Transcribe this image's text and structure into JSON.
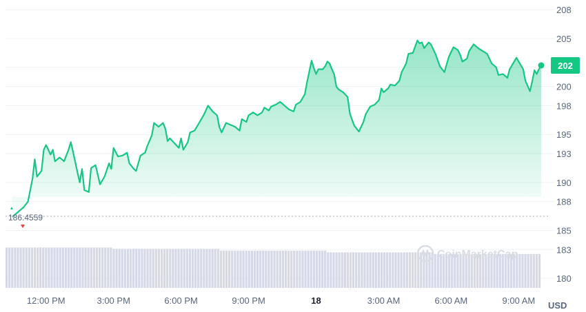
{
  "chart_data": {
    "type": "area",
    "currency": "USD",
    "open_price_label": "186.4559",
    "current_price_label": "202",
    "watermark": "CoinMarketCap",
    "y_ticks": [
      180,
      183,
      185,
      188,
      190,
      193,
      195,
      198,
      200,
      202,
      205,
      208
    ],
    "ylim": [
      179,
      208.3
    ],
    "xlim": [
      10.2,
      34.0
    ],
    "x_ticks": [
      {
        "label": "12:00 PM",
        "x": 12,
        "bold": false
      },
      {
        "label": "3:00 PM",
        "x": 15,
        "bold": false
      },
      {
        "label": "6:00 PM",
        "x": 18,
        "bold": false
      },
      {
        "label": "9:00 PM",
        "x": 21,
        "bold": false
      },
      {
        "label": "18",
        "x": 24,
        "bold": true
      },
      {
        "label": "3:00 AM",
        "x": 27,
        "bold": false
      },
      {
        "label": "6:00 AM",
        "x": 30,
        "bold": false
      },
      {
        "label": "9:00 AM",
        "x": 33,
        "bold": false
      }
    ],
    "colors": {
      "line": "#16c784",
      "down": "#ea3943",
      "volume": "#d5d8e6",
      "grid": "#eff2f5"
    },
    "series": [
      {
        "values": [
          [
            10.5,
            186.4
          ],
          [
            10.8,
            187.0
          ],
          [
            11.0,
            187.4
          ],
          [
            11.2,
            188.0
          ],
          [
            11.4,
            190.4
          ],
          [
            11.5,
            192.4
          ],
          [
            11.6,
            190.6
          ],
          [
            11.8,
            191.2
          ],
          [
            11.9,
            193.4
          ],
          [
            12.0,
            193.9
          ],
          [
            12.2,
            192.9
          ],
          [
            12.3,
            193.4
          ],
          [
            12.4,
            192.2
          ],
          [
            12.6,
            192.6
          ],
          [
            12.8,
            192.2
          ],
          [
            13.0,
            193.4
          ],
          [
            13.1,
            194.2
          ],
          [
            13.2,
            193.2
          ],
          [
            13.4,
            191.0
          ],
          [
            13.5,
            190.0
          ],
          [
            13.6,
            191.4
          ],
          [
            13.7,
            189.2
          ],
          [
            13.9,
            189.0
          ],
          [
            14.0,
            191.5
          ],
          [
            14.2,
            191.8
          ],
          [
            14.4,
            189.8
          ],
          [
            14.6,
            190.6
          ],
          [
            14.8,
            192.0
          ],
          [
            14.9,
            191.4
          ],
          [
            15.0,
            193.6
          ],
          [
            15.2,
            192.7
          ],
          [
            15.4,
            192.8
          ],
          [
            15.6,
            193.1
          ],
          [
            15.7,
            192.0
          ],
          [
            15.9,
            191.4
          ],
          [
            16.0,
            191.2
          ],
          [
            16.2,
            192.8
          ],
          [
            16.4,
            193.1
          ],
          [
            16.5,
            193.8
          ],
          [
            16.7,
            194.9
          ],
          [
            16.8,
            196.2
          ],
          [
            17.0,
            195.8
          ],
          [
            17.2,
            196.2
          ],
          [
            17.3,
            195.6
          ],
          [
            17.4,
            194.3
          ],
          [
            17.5,
            194.6
          ],
          [
            17.7,
            194.1
          ],
          [
            17.9,
            193.6
          ],
          [
            18.0,
            194.6
          ],
          [
            18.1,
            193.4
          ],
          [
            18.3,
            194.2
          ],
          [
            18.4,
            195.2
          ],
          [
            18.6,
            195.4
          ],
          [
            18.8,
            196.2
          ],
          [
            19.0,
            197.0
          ],
          [
            19.2,
            198.0
          ],
          [
            19.4,
            197.4
          ],
          [
            19.6,
            197.0
          ],
          [
            19.7,
            195.8
          ],
          [
            19.8,
            195.2
          ],
          [
            20.0,
            196.2
          ],
          [
            20.2,
            196.0
          ],
          [
            20.4,
            195.8
          ],
          [
            20.6,
            195.4
          ],
          [
            20.7,
            196.6
          ],
          [
            20.9,
            196.3
          ],
          [
            21.0,
            197.0
          ],
          [
            21.2,
            197.3
          ],
          [
            21.4,
            197.0
          ],
          [
            21.6,
            197.3
          ],
          [
            21.7,
            197.8
          ],
          [
            21.9,
            197.5
          ],
          [
            22.0,
            197.9
          ],
          [
            22.2,
            198.1
          ],
          [
            22.4,
            198.4
          ],
          [
            22.5,
            198.2
          ],
          [
            22.6,
            198.0
          ],
          [
            22.8,
            197.6
          ],
          [
            23.0,
            197.4
          ],
          [
            23.1,
            198.1
          ],
          [
            23.3,
            198.4
          ],
          [
            23.5,
            199.2
          ],
          [
            23.6,
            200.5
          ],
          [
            23.8,
            202.7
          ],
          [
            23.9,
            201.9
          ],
          [
            24.0,
            201.3
          ],
          [
            24.1,
            201.8
          ],
          [
            24.3,
            201.8
          ],
          [
            24.4,
            202.1
          ],
          [
            24.5,
            202.6
          ],
          [
            24.6,
            202.4
          ],
          [
            24.7,
            201.8
          ],
          [
            24.8,
            201.3
          ],
          [
            24.9,
            200.0
          ],
          [
            25.0,
            199.7
          ],
          [
            25.2,
            199.4
          ],
          [
            25.4,
            198.9
          ],
          [
            25.5,
            197.2
          ],
          [
            25.6,
            196.5
          ],
          [
            25.7,
            195.9
          ],
          [
            25.9,
            195.3
          ],
          [
            26.1,
            196.3
          ],
          [
            26.2,
            197.1
          ],
          [
            26.4,
            197.9
          ],
          [
            26.6,
            198.1
          ],
          [
            26.8,
            198.6
          ],
          [
            26.9,
            199.8
          ],
          [
            27.0,
            199.4
          ],
          [
            27.2,
            199.8
          ],
          [
            27.3,
            200.2
          ],
          [
            27.5,
            200.1
          ],
          [
            27.7,
            200.6
          ],
          [
            27.8,
            201.5
          ],
          [
            28.0,
            202.4
          ],
          [
            28.1,
            203.4
          ],
          [
            28.3,
            203.5
          ],
          [
            28.5,
            204.8
          ],
          [
            28.6,
            204.5
          ],
          [
            28.7,
            204.6
          ],
          [
            28.8,
            204.0
          ],
          [
            29.0,
            204.6
          ],
          [
            29.1,
            204.4
          ],
          [
            29.3,
            203.4
          ],
          [
            29.5,
            202.1
          ],
          [
            29.7,
            201.5
          ],
          [
            29.9,
            203.1
          ],
          [
            30.1,
            204.1
          ],
          [
            30.3,
            203.8
          ],
          [
            30.4,
            203.3
          ],
          [
            30.5,
            202.6
          ],
          [
            30.7,
            202.9
          ],
          [
            30.8,
            203.7
          ],
          [
            31.0,
            204.4
          ],
          [
            31.2,
            204.0
          ],
          [
            31.4,
            203.7
          ],
          [
            31.6,
            203.4
          ],
          [
            31.8,
            202.4
          ],
          [
            32.0,
            202.0
          ],
          [
            32.1,
            201.2
          ],
          [
            32.3,
            201.3
          ],
          [
            32.5,
            200.9
          ],
          [
            32.6,
            201.8
          ],
          [
            32.8,
            202.6
          ],
          [
            32.9,
            203.0
          ],
          [
            33.0,
            202.6
          ],
          [
            33.2,
            201.8
          ],
          [
            33.3,
            200.6
          ],
          [
            33.5,
            199.5
          ],
          [
            33.6,
            200.5
          ],
          [
            33.7,
            201.7
          ],
          [
            33.8,
            201.3
          ],
          [
            33.9,
            201.8
          ],
          [
            34.0,
            202.2
          ]
        ]
      }
    ],
    "volume_levels": [
      0.93,
      0.9,
      0.86,
      0.82,
      0.78
    ]
  }
}
